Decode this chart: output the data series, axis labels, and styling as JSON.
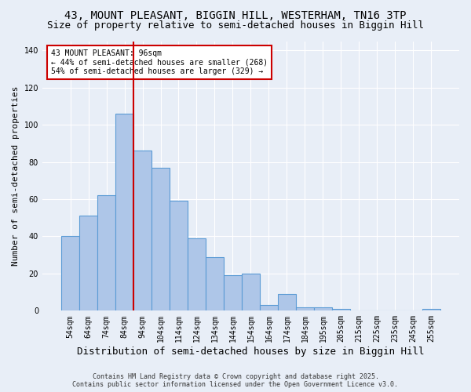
{
  "title1": "43, MOUNT PLEASANT, BIGGIN HILL, WESTERHAM, TN16 3TP",
  "title2": "Size of property relative to semi-detached houses in Biggin Hill",
  "xlabel": "Distribution of semi-detached houses by size in Biggin Hill",
  "ylabel": "Number of semi-detached properties",
  "categories": [
    "54sqm",
    "64sqm",
    "74sqm",
    "84sqm",
    "94sqm",
    "104sqm",
    "114sqm",
    "124sqm",
    "134sqm",
    "144sqm",
    "154sqm",
    "164sqm",
    "174sqm",
    "184sqm",
    "195sqm",
    "205sqm",
    "215sqm",
    "225sqm",
    "235sqm",
    "245sqm",
    "255sqm"
  ],
  "values": [
    40,
    51,
    62,
    106,
    86,
    77,
    59,
    39,
    29,
    19,
    20,
    3,
    9,
    2,
    2,
    1,
    0,
    0,
    0,
    0,
    1
  ],
  "bar_color": "#aec6e8",
  "bar_edge_color": "#5b9bd5",
  "bg_color": "#e8eef7",
  "grid_color": "#ffffff",
  "vline_color": "#cc0000",
  "vline_x_index": 3.5,
  "annotation_text": "43 MOUNT PLEASANT: 96sqm\n← 44% of semi-detached houses are smaller (268)\n54% of semi-detached houses are larger (329) →",
  "annotation_box_color": "#ffffff",
  "annotation_box_edge": "#cc0000",
  "footer1": "Contains HM Land Registry data © Crown copyright and database right 2025.",
  "footer2": "Contains public sector information licensed under the Open Government Licence v3.0.",
  "ylim": [
    0,
    145
  ],
  "title_fontsize": 10,
  "subtitle_fontsize": 9,
  "ylabel_fontsize": 8,
  "xlabel_fontsize": 9,
  "tick_fontsize": 7,
  "annotation_fontsize": 7,
  "footer_fontsize": 6
}
